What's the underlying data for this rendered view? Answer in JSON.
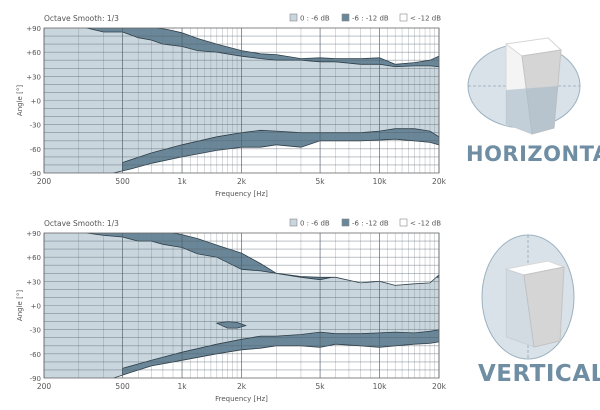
{
  "chart_data": [
    {
      "type": "heatmap",
      "title": "Octave Smooth: 1/3",
      "label": "HORIZONTAL",
      "xlabel": "Frequency [Hz]",
      "ylabel": "Angle [°]",
      "xscale": "log",
      "xlim": [
        200,
        20000
      ],
      "ylim": [
        -90,
        90
      ],
      "x_ticks": [
        "200",
        "500",
        "1k",
        "2k",
        "5k",
        "10k",
        "20k"
      ],
      "y_ticks": [
        "+90",
        "+60",
        "+30",
        "+0",
        "-30",
        "-60",
        "-90"
      ],
      "legend": [
        "0 : -6 dB",
        "-6 : -12 dB",
        "< -12 dB"
      ],
      "legend_placement": "top-right",
      "colors": {
        "zone_0_6": "#c9d6de",
        "zone_6_12": "#6a8799",
        "zone_below_12": "#ffffff"
      },
      "contours": [
        {
          "name": "-6 dB upper",
          "x": [
            330,
            400,
            500,
            600,
            700,
            800,
            1000,
            1200,
            1500,
            2000,
            2500,
            3000,
            4000,
            5000,
            6000,
            8000,
            10000,
            12000,
            15000,
            18000,
            20000
          ],
          "y": [
            90,
            85,
            85,
            78,
            75,
            70,
            67,
            62,
            60,
            55,
            52,
            50,
            50,
            48,
            48,
            45,
            45,
            42,
            43,
            43,
            42
          ]
        },
        {
          "name": "-12 dB upper",
          "x": [
            750,
            850,
            1000,
            1200,
            1500,
            2000,
            2500,
            3000,
            4000,
            5000,
            6000,
            8000,
            10000,
            12000,
            15000,
            18000,
            20000
          ],
          "y": [
            90,
            88,
            84,
            77,
            70,
            62,
            58,
            57,
            52,
            53,
            52,
            52,
            53,
            45,
            47,
            50,
            55
          ]
        },
        {
          "name": "-6 dB lower",
          "x": [
            500,
            700,
            1000,
            1500,
            2000,
            2500,
            3000,
            4000,
            5000,
            6000,
            8000,
            10000,
            12000,
            15000,
            18000,
            20000
          ],
          "y": [
            -77,
            -65,
            -55,
            -45,
            -40,
            -37,
            -38,
            -40,
            -40,
            -40,
            -40,
            -38,
            -35,
            -35,
            -38,
            -45
          ]
        },
        {
          "name": "-12 dB lower",
          "x": [
            450,
            550,
            700,
            1000,
            1500,
            2000,
            2500,
            3000,
            4000,
            5000,
            6000,
            8000,
            10000,
            12000,
            15000,
            18000,
            20000
          ],
          "y": [
            -90,
            -85,
            -78,
            -70,
            -62,
            -58,
            -58,
            -55,
            -58,
            -50,
            -50,
            -50,
            -49,
            -48,
            -50,
            -52,
            -55
          ]
        }
      ]
    },
    {
      "type": "heatmap",
      "title": "Octave Smooth: 1/3",
      "label": "VERTICAL",
      "xlabel": "Frequency [Hz]",
      "ylabel": "Angle [°]",
      "xscale": "log",
      "xlim": [
        200,
        20000
      ],
      "ylim": [
        -90,
        90
      ],
      "x_ticks": [
        "200",
        "500",
        "1k",
        "2k",
        "5k",
        "10k",
        "20k"
      ],
      "y_ticks": [
        "+90",
        "+60",
        "+30",
        "+0",
        "-30",
        "-60",
        "-90"
      ],
      "legend": [
        "0 : -6 dB",
        "-6 : -12 dB",
        "< -12 dB"
      ],
      "legend_placement": "top-right",
      "colors": {
        "zone_0_6": "#c9d6de",
        "zone_6_12": "#6a8799",
        "zone_below_12": "#ffffff"
      },
      "contours": [
        {
          "name": "-6 dB upper",
          "x": [
            330,
            400,
            500,
            600,
            700,
            800,
            1000,
            1200,
            1500,
            2000,
            2500,
            3000,
            4000,
            5000,
            6000,
            8000,
            10000,
            12000,
            15000,
            18000,
            20000
          ],
          "y": [
            90,
            87,
            85,
            80,
            80,
            76,
            72,
            64,
            60,
            45,
            43,
            40,
            35,
            32,
            36,
            38,
            36,
            33,
            33,
            36,
            35
          ]
        },
        {
          "name": "-12 dB upper",
          "x": [
            900,
            1000,
            1200,
            1500,
            2000,
            2500,
            3000,
            4000,
            5000,
            6000,
            8000,
            10000,
            12000,
            15000,
            18000,
            20000
          ],
          "y": [
            90,
            88,
            83,
            75,
            65,
            52,
            40,
            36,
            35,
            35,
            28,
            30,
            25,
            27,
            28,
            38
          ]
        },
        {
          "name": "-6 dB lower",
          "x": [
            500,
            700,
            1000,
            1500,
            2000,
            2500,
            3000,
            4000,
            5000,
            6000,
            8000,
            10000,
            12000,
            15000,
            18000,
            20000
          ],
          "y": [
            -78,
            -68,
            -58,
            -48,
            -42,
            -38,
            -38,
            -36,
            -33,
            -35,
            -35,
            -34,
            -33,
            -34,
            -32,
            -30
          ]
        },
        {
          "name": "-12 dB lower",
          "x": [
            450,
            550,
            700,
            1000,
            1500,
            2000,
            2500,
            3000,
            4000,
            5000,
            6000,
            8000,
            10000,
            12000,
            15000,
            18000,
            20000
          ],
          "y": [
            -90,
            -83,
            -75,
            -68,
            -60,
            -55,
            -53,
            -50,
            -50,
            -52,
            -48,
            -50,
            -52,
            -50,
            -48,
            -47,
            -45
          ]
        },
        {
          "name": "-6 dB island",
          "x": [
            1500,
            1700,
            1900,
            2100,
            1900,
            1700,
            1500
          ],
          "y": [
            -22,
            -20,
            -21,
            -25,
            -28,
            -28,
            -22
          ]
        }
      ]
    }
  ]
}
